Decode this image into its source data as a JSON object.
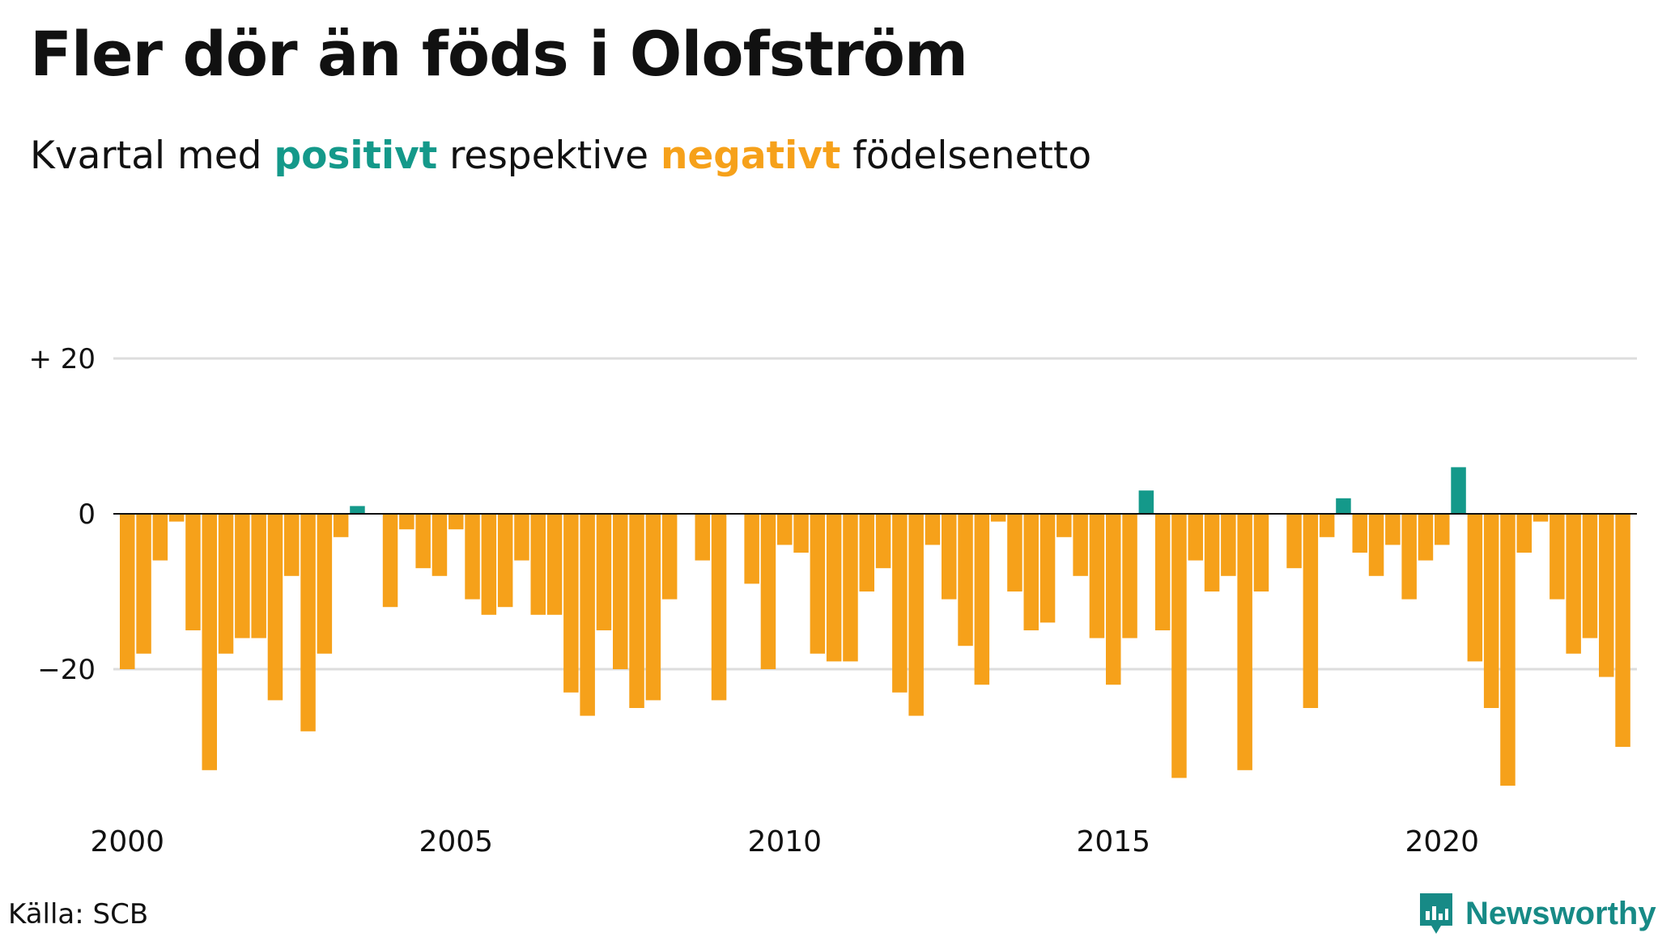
{
  "title": "Fler dör än föds i Olofström",
  "subtitle": {
    "prefix": "Kvartal med ",
    "positive_word": "positivt",
    "middle": " respektive ",
    "negative_word": "negativt",
    "suffix": " födelsenetto"
  },
  "source": "Källa: SCB",
  "brand": {
    "name": "Newsworthy",
    "icon": "newsworthy-logo-icon"
  },
  "colors": {
    "positive": "#14998a",
    "negative": "#f6a11a",
    "grid": "#dddddd",
    "brand": "#178a86"
  },
  "chart_data": {
    "type": "bar",
    "x_start": "2000 Q1",
    "frequency": "quarter",
    "x_ticks": [
      "2000",
      "2005",
      "2010",
      "2015",
      "2020"
    ],
    "y_ticks": [
      "+ 20",
      "0",
      "−20"
    ],
    "y_tick_values": [
      20,
      0,
      -20
    ],
    "ylim": [
      -35,
      20
    ],
    "grid": true,
    "values": [
      -20,
      -18,
      -6,
      -1,
      -15,
      -33,
      -18,
      -16,
      -16,
      -24,
      -8,
      -28,
      -18,
      -3,
      1,
      0,
      -12,
      -2,
      -7,
      -8,
      -2,
      -11,
      -13,
      -12,
      -6,
      -13,
      -13,
      -23,
      -26,
      -15,
      -20,
      -25,
      -24,
      -11,
      0,
      -6,
      -24,
      0,
      -9,
      -20,
      -4,
      -5,
      -18,
      -19,
      -19,
      -10,
      -7,
      -23,
      -26,
      -4,
      -11,
      -17,
      -22,
      -1,
      -10,
      -15,
      -14,
      -3,
      -8,
      -16,
      -22,
      -16,
      3,
      -15,
      -34,
      -6,
      -10,
      -8,
      -33,
      -10,
      0,
      -7,
      -25,
      -3,
      2,
      -5,
      -8,
      -4,
      -11,
      -6,
      -4,
      6,
      -19,
      -25,
      -35,
      -5,
      -1,
      -11,
      -18,
      -16,
      -21,
      -30
    ]
  }
}
